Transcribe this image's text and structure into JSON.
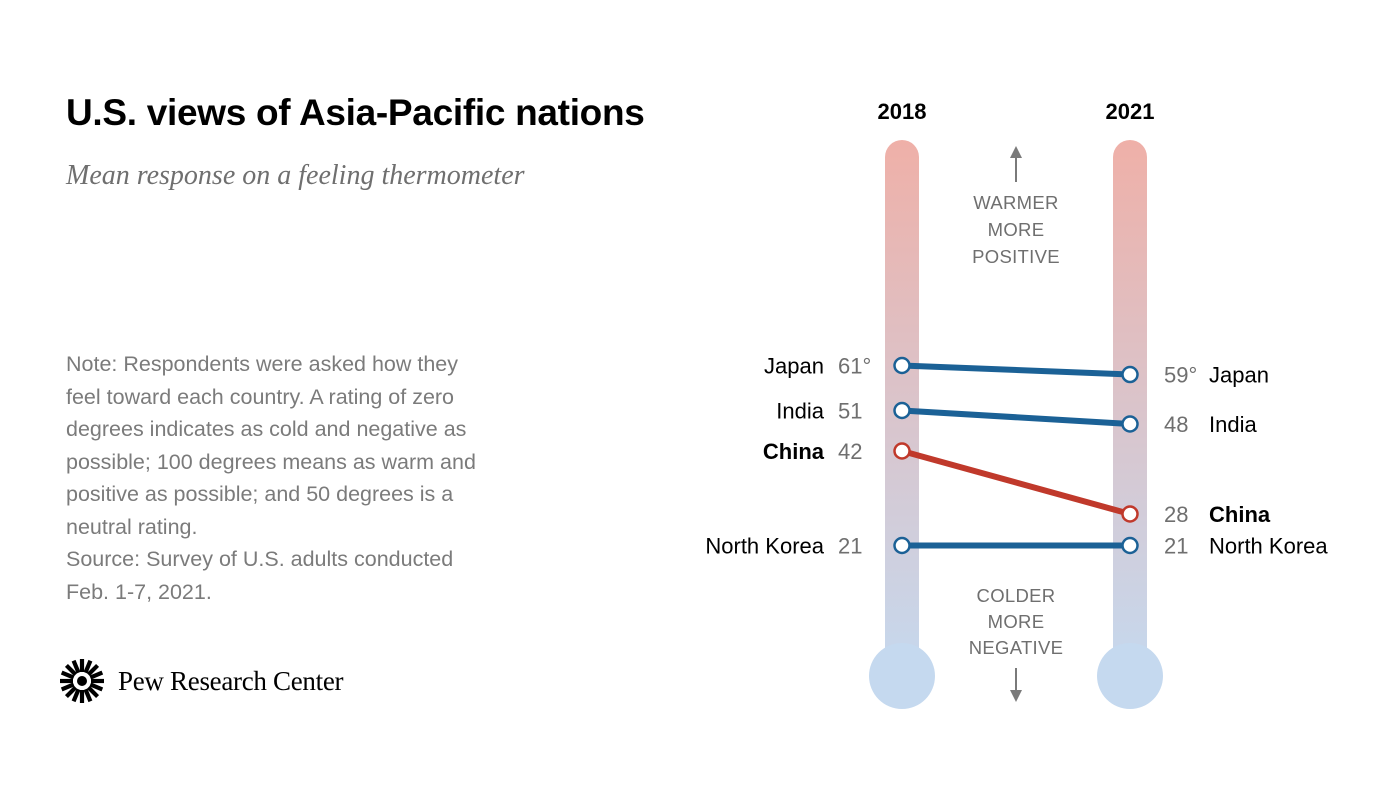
{
  "header": {
    "title": "U.S. views of Asia-Pacific nations",
    "subtitle": "Mean response on a feeling thermometer"
  },
  "note_lines": [
    "Note: Respondents were asked how they",
    "feel toward each country. A rating of zero",
    "degrees indicates as cold and negative as",
    "possible; 100 degrees means as warm and",
    "positive as possible; and 50 degrees is a",
    "neutral rating.",
    "Source: Survey of U.S. adults conducted",
    "Feb. 1-7, 2021."
  ],
  "brand": {
    "name": "Pew Research Center",
    "icon": "pew-sunburst-icon"
  },
  "chart_data": {
    "type": "slope",
    "years": [
      "2018",
      "2021"
    ],
    "warm_label": [
      "WARMER",
      "MORE",
      "POSITIVE"
    ],
    "cold_label": [
      "COLDER",
      "MORE",
      "NEGATIVE"
    ],
    "series": [
      {
        "name": "Japan",
        "values": [
          61,
          59
        ],
        "value_labels": [
          "61°",
          "59°"
        ],
        "highlight": false
      },
      {
        "name": "India",
        "values": [
          51,
          48
        ],
        "value_labels": [
          "51",
          "48"
        ],
        "highlight": false
      },
      {
        "name": "China",
        "values": [
          42,
          28
        ],
        "value_labels": [
          "42",
          "28"
        ],
        "highlight": true
      },
      {
        "name": "North Korea",
        "values": [
          21,
          21
        ],
        "value_labels": [
          "21",
          "21"
        ],
        "highlight": false
      }
    ],
    "colors": {
      "line": "#1b6196",
      "highlight": "#c0392b",
      "warm": "#efb0a8",
      "cold": "#c5d9ef",
      "guide": "#7a7a7a"
    }
  }
}
